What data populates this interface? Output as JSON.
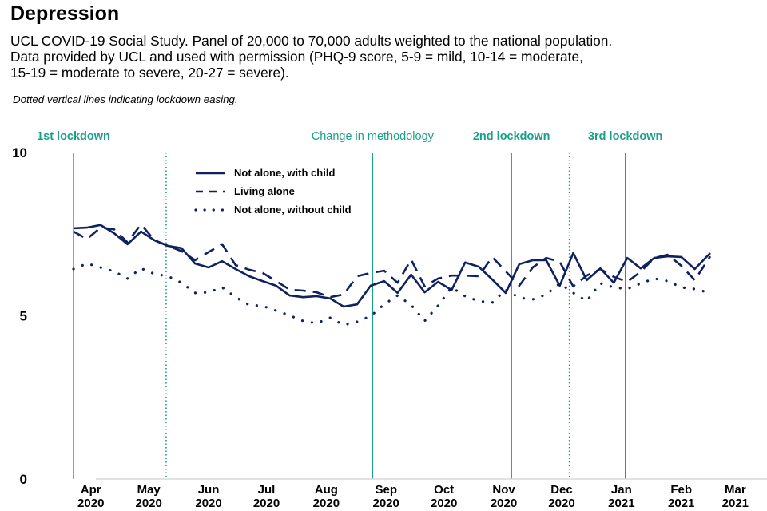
{
  "page": {
    "title": "Depression",
    "subtitle_lines": [
      "UCL COVID-19 Social Study. Panel of 20,000 to 70,000 adults weighted to the national population.",
      "Data provided by UCL and used with permission (PHQ-9 score, 5-9 = mild, 10-14 = moderate,",
      "15-19 = moderate to severe, 20-27 = severe)."
    ],
    "note": "Dotted vertical lines indicating lockdown easing."
  },
  "colors": {
    "series": "#0f2160",
    "event": "#1aa089",
    "axis": "#d9d9d9"
  },
  "chart_data": {
    "type": "line",
    "title": "Depression",
    "xlabel": "",
    "ylabel": "PHQ-9 score",
    "ylim": [
      0,
      10
    ],
    "yticks": [
      0,
      5,
      10
    ],
    "grid": false,
    "legend_position": "top-left (inside plot)",
    "x_unit": "days since 2020-03-01",
    "xlim": [
      5,
      375
    ],
    "xticks": [
      {
        "day": 31,
        "label": [
          "Apr",
          "2020"
        ]
      },
      {
        "day": 61,
        "label": [
          "May",
          "2020"
        ]
      },
      {
        "day": 92,
        "label": [
          "Jun",
          "2020"
        ]
      },
      {
        "day": 122,
        "label": [
          "Jul",
          "2020"
        ]
      },
      {
        "day": 153,
        "label": [
          "Aug",
          "2020"
        ]
      },
      {
        "day": 184,
        "label": [
          "Sep",
          "2020"
        ]
      },
      {
        "day": 214,
        "label": [
          "Oct",
          "2020"
        ]
      },
      {
        "day": 245,
        "label": [
          "Nov",
          "2020"
        ]
      },
      {
        "day": 275,
        "label": [
          "Dec",
          "2020"
        ]
      },
      {
        "day": 306,
        "label": [
          "Jan",
          "2021"
        ]
      },
      {
        "day": 337,
        "label": [
          "Feb",
          "2021"
        ]
      },
      {
        "day": 365,
        "label": [
          "Mar",
          "2021"
        ]
      }
    ],
    "events": [
      {
        "day": 22,
        "label": "1st lockdown",
        "style": "solid",
        "bold": true
      },
      {
        "day": 70,
        "label": "",
        "style": "dotted",
        "bold": false
      },
      {
        "day": 177,
        "label": "Change in methodology",
        "style": "solid",
        "bold": false
      },
      {
        "day": 249,
        "label": "2nd lockdown",
        "style": "solid",
        "bold": true
      },
      {
        "day": 279,
        "label": "",
        "style": "dotted",
        "bold": false
      },
      {
        "day": 308,
        "label": "3rd lockdown",
        "style": "solid",
        "bold": true
      }
    ],
    "series": [
      {
        "name": "Not alone, with child",
        "dash": "solid",
        "x": [
          22,
          29,
          36,
          43,
          50,
          57,
          64,
          71,
          78,
          85,
          92,
          99,
          106,
          113,
          120,
          127,
          134,
          141,
          148,
          155,
          162,
          169,
          176,
          183,
          190,
          197,
          204,
          211,
          218,
          225,
          232,
          239,
          246,
          253,
          260,
          267,
          274,
          281,
          288,
          295,
          302,
          309,
          316,
          323,
          330,
          337,
          344,
          352
        ],
        "values": [
          7.68,
          7.7,
          7.78,
          7.53,
          7.19,
          7.58,
          7.31,
          7.14,
          7.07,
          6.6,
          6.48,
          6.67,
          6.43,
          6.21,
          6.06,
          5.92,
          5.62,
          5.57,
          5.6,
          5.53,
          5.28,
          5.35,
          5.92,
          6.06,
          5.7,
          6.26,
          5.72,
          6.04,
          5.79,
          6.63,
          6.5,
          6.11,
          5.7,
          6.58,
          6.7,
          6.7,
          5.92,
          6.92,
          6.09,
          6.45,
          6.01,
          6.77,
          6.45,
          6.77,
          6.82,
          6.8,
          6.43,
          6.92
        ]
      },
      {
        "name": "Living alone",
        "dash": "dashed",
        "x": [
          22,
          29,
          36,
          43,
          50,
          57,
          64,
          71,
          78,
          85,
          92,
          99,
          106,
          113,
          120,
          127,
          134,
          141,
          148,
          155,
          162,
          169,
          176,
          183,
          190,
          197,
          204,
          211,
          218,
          225,
          232,
          239,
          246,
          253,
          260,
          267,
          274,
          281,
          288,
          295,
          302,
          309,
          316,
          323,
          330,
          337,
          344,
          352
        ],
        "values": [
          7.58,
          7.35,
          7.7,
          7.65,
          7.25,
          7.8,
          7.31,
          7.14,
          6.98,
          6.7,
          6.95,
          7.19,
          6.55,
          6.41,
          6.31,
          6.06,
          5.8,
          5.77,
          5.72,
          5.57,
          5.65,
          6.21,
          6.31,
          6.38,
          6.01,
          6.72,
          5.9,
          6.14,
          6.23,
          6.23,
          6.21,
          6.8,
          6.36,
          5.92,
          6.48,
          6.77,
          6.65,
          5.9,
          6.23,
          6.43,
          6.19,
          6.04,
          6.35,
          6.77,
          6.87,
          6.53,
          6.09,
          6.82
        ]
      },
      {
        "name": "Not alone, without child",
        "dash": "dotted",
        "x": [
          22,
          29,
          36,
          43,
          50,
          57,
          64,
          71,
          78,
          85,
          92,
          99,
          106,
          113,
          120,
          127,
          134,
          141,
          148,
          155,
          162,
          169,
          176,
          183,
          190,
          197,
          204,
          211,
          218,
          225,
          232,
          239,
          246,
          253,
          260,
          267,
          274,
          281,
          288,
          295,
          302,
          309,
          316,
          323,
          330,
          337,
          344,
          352
        ],
        "values": [
          6.43,
          6.6,
          6.48,
          6.36,
          6.14,
          6.45,
          6.28,
          6.21,
          6.01,
          5.7,
          5.72,
          5.87,
          5.57,
          5.33,
          5.3,
          5.16,
          5.01,
          4.84,
          4.77,
          4.94,
          4.72,
          4.82,
          4.99,
          5.35,
          5.62,
          5.33,
          4.84,
          5.31,
          5.87,
          5.6,
          5.45,
          5.4,
          5.8,
          5.55,
          5.5,
          5.65,
          5.99,
          5.7,
          5.45,
          5.99,
          5.87,
          5.82,
          5.99,
          6.14,
          6.06,
          5.87,
          5.82,
          5.7
        ]
      }
    ]
  }
}
